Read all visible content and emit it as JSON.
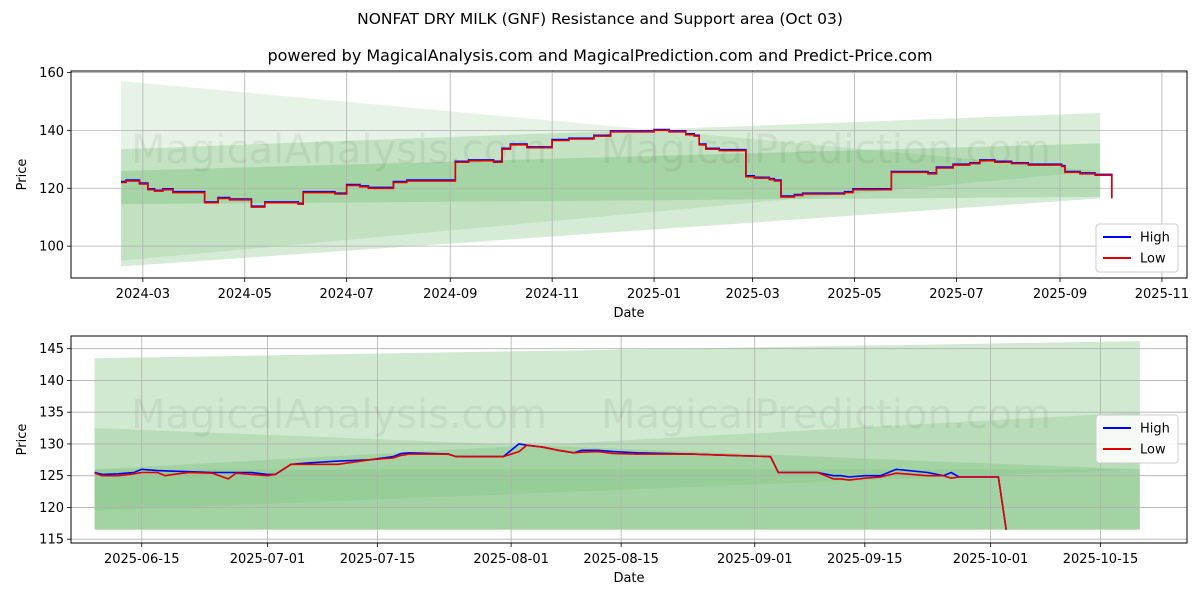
{
  "title": "NONFAT DRY MILK (GNF) Resistance and Support area (Oct 03)",
  "subtitle": "powered by MagicalAnalysis.com and MagicalPrediction.com and Predict-Price.com",
  "watermark": [
    "MagicalAnalysis.com",
    "MagicalPrediction.com"
  ],
  "colors": {
    "high": "#0000ff",
    "low": "#e00000",
    "band": "#2e9a2e",
    "grid": "#b0b0b0"
  },
  "chart_data": [
    {
      "type": "line",
      "xlabel": "Date",
      "ylabel": "Price",
      "x_ticks": [
        "2024-03",
        "2024-05",
        "2024-07",
        "2024-09",
        "2024-11",
        "2025-01",
        "2025-03",
        "2025-05",
        "2025-07",
        "2025-09",
        "2025-11"
      ],
      "x_tick_days": [
        30,
        91,
        152,
        214,
        275,
        336,
        395,
        456,
        517,
        579,
        640
      ],
      "xlim_days": [
        -13,
        655
      ],
      "ylim": [
        89,
        160.5
      ],
      "y_ticks": [
        100,
        120,
        140,
        160
      ],
      "y_tick_labels": [
        "100",
        "120",
        "140",
        "160"
      ],
      "legend": [
        "High",
        "Low"
      ],
      "legend_position": "lower right",
      "bands": [
        {
          "t": [
            17,
            603
          ],
          "upper": [
            157,
            126
          ],
          "lower": [
            95,
            126
          ],
          "opacity": 0.12
        },
        {
          "t": [
            17,
            603
          ],
          "upper": [
            133.5,
            146
          ],
          "lower": [
            114.5,
            117
          ],
          "opacity": 0.18
        },
        {
          "t": [
            17,
            603
          ],
          "upper": [
            126,
            135.5
          ],
          "lower": [
            93,
            116.5
          ],
          "opacity": 0.2
        }
      ],
      "steps": [
        [
          17,
          122
        ],
        [
          20,
          122.5
        ],
        [
          28,
          121.5
        ],
        [
          33,
          119.5
        ],
        [
          37,
          119
        ],
        [
          42,
          119.5
        ],
        [
          48,
          118.5
        ],
        [
          65,
          118.5
        ],
        [
          67,
          115
        ],
        [
          75,
          116.5
        ],
        [
          82,
          116
        ],
        [
          90,
          116
        ],
        [
          95,
          113.5
        ],
        [
          103,
          115
        ],
        [
          123,
          114.5
        ],
        [
          126,
          118.5
        ],
        [
          145,
          118
        ],
        [
          152,
          121
        ],
        [
          160,
          120.5
        ],
        [
          165,
          120
        ],
        [
          180,
          122
        ],
        [
          188,
          122.5
        ],
        [
          200,
          122.5
        ],
        [
          212,
          122.5
        ],
        [
          217,
          129
        ],
        [
          225,
          129.5
        ],
        [
          240,
          129
        ],
        [
          245,
          133.5
        ],
        [
          250,
          135
        ],
        [
          260,
          134
        ],
        [
          275,
          136.5
        ],
        [
          285,
          137
        ],
        [
          290,
          137
        ],
        [
          300,
          138
        ],
        [
          310,
          139.5
        ],
        [
          320,
          139.5
        ],
        [
          333,
          139.5
        ],
        [
          336,
          140
        ],
        [
          345,
          139.5
        ],
        [
          355,
          138.5
        ],
        [
          360,
          138
        ],
        [
          363,
          135
        ],
        [
          367,
          133.5
        ],
        [
          375,
          133
        ],
        [
          380,
          133
        ],
        [
          388,
          133
        ],
        [
          391,
          124
        ],
        [
          396,
          123.5
        ],
        [
          405,
          123
        ],
        [
          408,
          122.5
        ],
        [
          412,
          117
        ],
        [
          420,
          117.5
        ],
        [
          425,
          118
        ],
        [
          437,
          118
        ],
        [
          450,
          118.5
        ],
        [
          455,
          119.5
        ],
        [
          475,
          119.5
        ],
        [
          478,
          125.5
        ],
        [
          485,
          125.5
        ],
        [
          495,
          125.5
        ],
        [
          500,
          125
        ],
        [
          505,
          127
        ],
        [
          515,
          128
        ],
        [
          525,
          128.5
        ],
        [
          531,
          129.5
        ],
        [
          540,
          129
        ],
        [
          550,
          128.5
        ],
        [
          555,
          128.5
        ],
        [
          560,
          128
        ],
        [
          580,
          127.5
        ],
        [
          582,
          125.5
        ],
        [
          591,
          125
        ],
        [
          600,
          124.5
        ],
        [
          608,
          124.5
        ],
        [
          610,
          116.5
        ]
      ],
      "final_value": 116.5
    },
    {
      "type": "line",
      "xlabel": "Date",
      "ylabel": "Price",
      "x_ticks": [
        "2025-06-15",
        "2025-07-01",
        "2025-07-15",
        "2025-08-01",
        "2025-08-15",
        "2025-09-01",
        "2025-09-15",
        "2025-10-01",
        "2025-10-15"
      ],
      "x_tick_days": [
        0,
        16,
        30,
        47,
        61,
        78,
        92,
        108,
        122
      ],
      "xlim_days": [
        -9,
        133
      ],
      "ylim": [
        114.4,
        147
      ],
      "y_ticks": [
        115,
        120,
        125,
        130,
        135,
        140,
        145
      ],
      "y_tick_labels": [
        "115",
        "120",
        "125",
        "130",
        "135",
        "140",
        "145"
      ],
      "legend": [
        "High",
        "Low"
      ],
      "legend_position": "center right",
      "bands": [
        {
          "t": [
            -6,
            127
          ],
          "upper": [
            143.5,
            146.2
          ],
          "lower": [
            116.5,
            116.5
          ],
          "opacity": 0.22
        },
        {
          "t": [
            -6,
            127
          ],
          "upper": [
            132.5,
            126
          ],
          "lower": [
            116.5,
            116.5
          ],
          "opacity": 0.15
        },
        {
          "t": [
            -6,
            127
          ],
          "upper": [
            126,
            135
          ],
          "lower": [
            116.5,
            116.5
          ],
          "opacity": 0.15
        },
        {
          "t": [
            -6,
            127
          ],
          "upper": [
            126,
            126
          ],
          "lower": [
            119.5,
            126
          ],
          "opacity": 0.1
        }
      ],
      "high": [
        [
          -6,
          125.5
        ],
        [
          -5,
          125.2
        ],
        [
          -3,
          125.3
        ],
        [
          -1,
          125.5
        ],
        [
          0,
          126
        ],
        [
          2,
          125.8
        ],
        [
          4,
          125.7
        ],
        [
          7,
          125.6
        ],
        [
          9,
          125.5
        ],
        [
          11,
          125.5
        ],
        [
          13,
          125.5
        ],
        [
          14,
          125.5
        ],
        [
          16,
          125.2
        ],
        [
          17,
          125.2
        ],
        [
          19,
          126.8
        ],
        [
          21,
          127
        ],
        [
          25,
          127.3
        ],
        [
          29,
          127.5
        ],
        [
          32,
          128
        ],
        [
          33,
          128.5
        ],
        [
          34,
          128.6
        ],
        [
          39,
          128.4
        ],
        [
          40,
          128
        ],
        [
          46,
          128
        ],
        [
          48,
          130
        ],
        [
          49,
          129.8
        ],
        [
          51,
          129.5
        ],
        [
          53,
          129
        ],
        [
          55,
          128.6
        ],
        [
          56,
          129
        ],
        [
          58,
          129
        ],
        [
          60,
          128.8
        ],
        [
          63,
          128.6
        ],
        [
          70,
          128.4
        ],
        [
          75,
          128.2
        ],
        [
          80,
          128
        ],
        [
          81,
          125.5
        ],
        [
          86,
          125.5
        ],
        [
          88,
          125
        ],
        [
          89,
          125
        ],
        [
          90,
          124.8
        ],
        [
          92,
          125
        ],
        [
          94,
          125
        ],
        [
          96,
          126
        ],
        [
          100,
          125.5
        ],
        [
          102,
          125
        ],
        [
          103,
          125.5
        ],
        [
          104,
          124.8
        ],
        [
          109,
          124.8
        ],
        [
          110,
          116.5
        ]
      ],
      "low": [
        [
          -6,
          125.4
        ],
        [
          -5,
          125
        ],
        [
          -3,
          125
        ],
        [
          -1,
          125.3
        ],
        [
          0,
          125.5
        ],
        [
          2,
          125.5
        ],
        [
          3,
          125
        ],
        [
          4,
          125.2
        ],
        [
          6,
          125.5
        ],
        [
          9,
          125.4
        ],
        [
          11,
          124.5
        ],
        [
          12,
          125.4
        ],
        [
          14,
          125.2
        ],
        [
          16,
          125
        ],
        [
          17,
          125.2
        ],
        [
          19,
          126.8
        ],
        [
          21,
          126.8
        ],
        [
          25,
          126.8
        ],
        [
          29,
          127.5
        ],
        [
          32,
          127.8
        ],
        [
          33,
          128.2
        ],
        [
          34,
          128.4
        ],
        [
          39,
          128.4
        ],
        [
          40,
          128
        ],
        [
          46,
          128
        ],
        [
          48,
          128.8
        ],
        [
          49,
          129.8
        ],
        [
          51,
          129.5
        ],
        [
          53,
          129
        ],
        [
          55,
          128.6
        ],
        [
          56,
          128.7
        ],
        [
          58,
          128.8
        ],
        [
          60,
          128.5
        ],
        [
          63,
          128.4
        ],
        [
          70,
          128.4
        ],
        [
          75,
          128.2
        ],
        [
          80,
          128
        ],
        [
          81,
          125.5
        ],
        [
          86,
          125.5
        ],
        [
          88,
          124.5
        ],
        [
          89,
          124.5
        ],
        [
          90,
          124.3
        ],
        [
          92,
          124.6
        ],
        [
          94,
          124.8
        ],
        [
          96,
          125.4
        ],
        [
          100,
          125
        ],
        [
          102,
          125
        ],
        [
          103,
          124.6
        ],
        [
          104,
          124.8
        ],
        [
          109,
          124.8
        ],
        [
          110,
          116.5
        ]
      ]
    }
  ]
}
